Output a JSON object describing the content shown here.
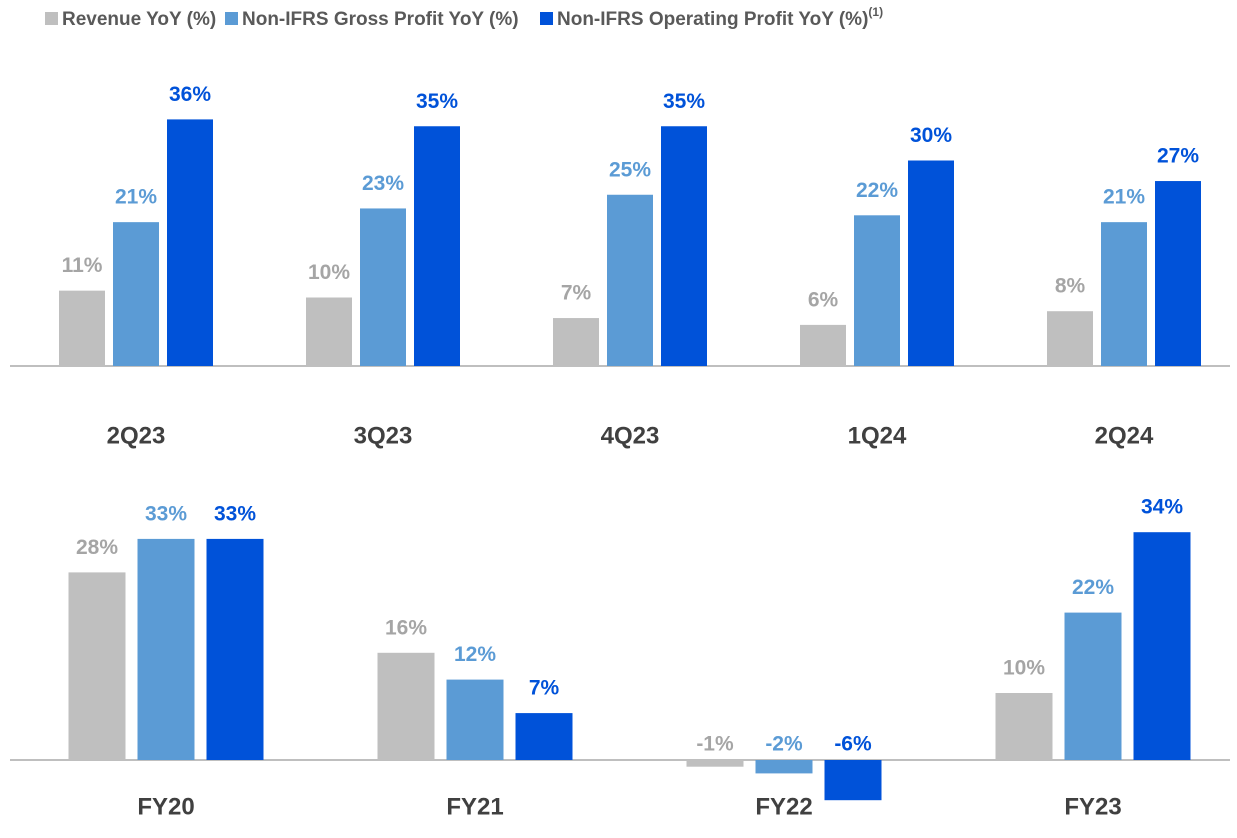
{
  "legend_footnote": "(1)",
  "chart_data": [
    {
      "type": "bar",
      "categories": [
        "2Q23",
        "3Q23",
        "4Q23",
        "1Q24",
        "2Q24"
      ],
      "series": [
        {
          "name": "Revenue YoY (%)",
          "color": "#bfbfbf",
          "label_color": "#a5a5a5",
          "values": [
            11,
            10,
            7,
            6,
            8
          ],
          "value_labels": [
            "11%",
            "10%",
            "7%",
            "6%",
            "8%"
          ]
        },
        {
          "name": "Non-IFRS Gross Profit YoY (%)",
          "color": "#5b9bd5",
          "label_color": "#5b9bd5",
          "values": [
            21,
            23,
            25,
            22,
            21
          ],
          "value_labels": [
            "21%",
            "23%",
            "25%",
            "22%",
            "21%"
          ]
        },
        {
          "name": "Non-IFRS Operating Profit YoY (%)",
          "color": "#0052d9",
          "label_color": "#0052d9",
          "values": [
            36,
            35,
            35,
            30,
            27
          ],
          "value_labels": [
            "36%",
            "35%",
            "35%",
            "30%",
            "27%"
          ]
        }
      ]
    },
    {
      "type": "bar",
      "categories": [
        "FY20",
        "FY21",
        "FY22",
        "FY23"
      ],
      "series": [
        {
          "color": "#bfbfbf",
          "label_color": "#a5a5a5",
          "values": [
            28,
            16,
            -1,
            10
          ],
          "value_labels": [
            "28%",
            "16%",
            "-1%",
            "10%"
          ]
        },
        {
          "color": "#5b9bd5",
          "label_color": "#5b9bd5",
          "values": [
            33,
            12,
            -2,
            22
          ],
          "value_labels": [
            "33%",
            "12%",
            "-2%",
            "22%"
          ]
        },
        {
          "color": "#0052d9",
          "label_color": "#0052d9",
          "values": [
            33,
            7,
            -6,
            34
          ],
          "value_labels": [
            "33%",
            "7%",
            "-6%",
            "34%"
          ]
        }
      ]
    }
  ]
}
